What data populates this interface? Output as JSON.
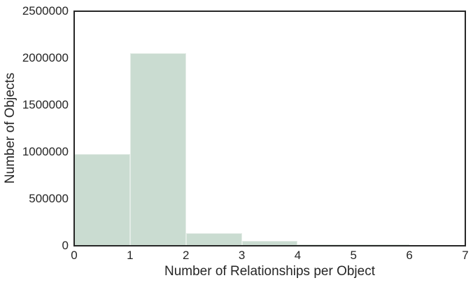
{
  "figure": {
    "background": "#ffffff"
  },
  "chart_data": {
    "type": "bar",
    "subtype": "histogram",
    "title": "",
    "xlabel": "Number of Relationships per Object",
    "ylabel": "Number of Objects",
    "xlim": [
      0,
      7
    ],
    "ylim": [
      0,
      2500000
    ],
    "grid": false,
    "legend": null,
    "bin_edges": [
      0,
      1,
      2,
      3,
      4,
      5,
      6,
      7
    ],
    "counts": [
      975000,
      2050000,
      137000,
      55000,
      18000,
      15000,
      0
    ],
    "xticks": [
      {
        "value": 0,
        "label": "0"
      },
      {
        "value": 1,
        "label": "1"
      },
      {
        "value": 2,
        "label": "2"
      },
      {
        "value": 3,
        "label": "3"
      },
      {
        "value": 4,
        "label": "4"
      },
      {
        "value": 5,
        "label": "5"
      },
      {
        "value": 6,
        "label": "6"
      },
      {
        "value": 7,
        "label": "7"
      }
    ],
    "yticks": [
      {
        "value": 0,
        "label": "0"
      },
      {
        "value": 500000,
        "label": "500000"
      },
      {
        "value": 1000000,
        "label": "1000000"
      },
      {
        "value": 1500000,
        "label": "1500000"
      },
      {
        "value": 2000000,
        "label": "2000000"
      },
      {
        "value": 2500000,
        "label": "2500000"
      }
    ],
    "colors": {
      "bar_fill": "#cadcd1",
      "bar_edge": "#e3ece6",
      "axis_line": "#262626",
      "text": "#262626",
      "background": "#ffffff"
    }
  }
}
